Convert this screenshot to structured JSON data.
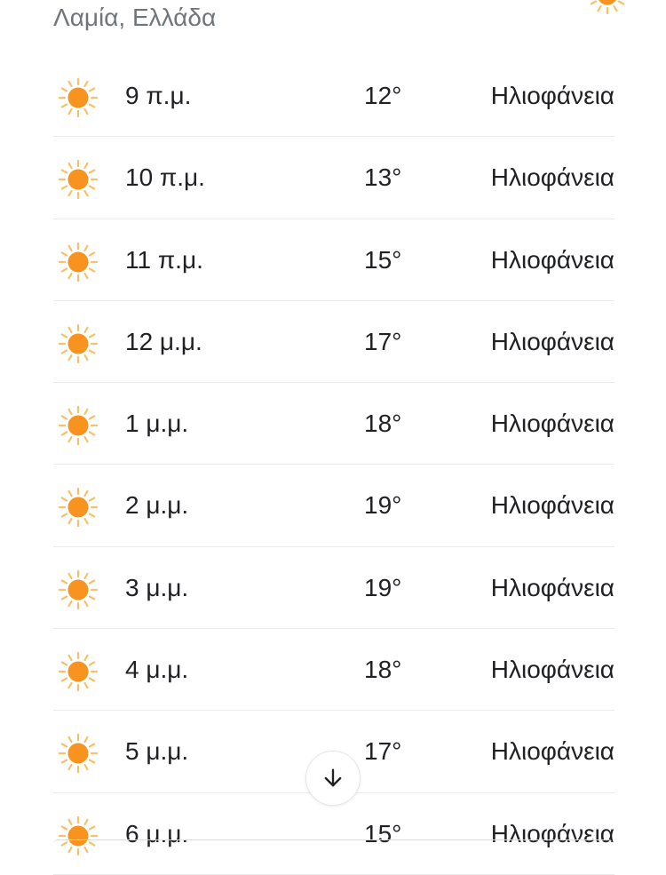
{
  "location": "Λαμία, Ελλάδα",
  "colors": {
    "sun": "#f7931e",
    "rays": "#f5c26b"
  },
  "hourly": [
    {
      "time": "9 π.μ.",
      "temp": "12°",
      "condition": "Ηλιοφάνεια",
      "icon": "sun-icon"
    },
    {
      "time": "10 π.μ.",
      "temp": "13°",
      "condition": "Ηλιοφάνεια",
      "icon": "sun-icon"
    },
    {
      "time": "11 π.μ.",
      "temp": "15°",
      "condition": "Ηλιοφάνεια",
      "icon": "sun-icon"
    },
    {
      "time": "12 μ.μ.",
      "temp": "17°",
      "condition": "Ηλιοφάνεια",
      "icon": "sun-icon"
    },
    {
      "time": "1 μ.μ.",
      "temp": "18°",
      "condition": "Ηλιοφάνεια",
      "icon": "sun-icon"
    },
    {
      "time": "2 μ.μ.",
      "temp": "19°",
      "condition": "Ηλιοφάνεια",
      "icon": "sun-icon"
    },
    {
      "time": "3 μ.μ.",
      "temp": "19°",
      "condition": "Ηλιοφάνεια",
      "icon": "sun-icon"
    },
    {
      "time": "4 μ.μ.",
      "temp": "18°",
      "condition": "Ηλιοφάνεια",
      "icon": "sun-icon"
    },
    {
      "time": "5 μ.μ.",
      "temp": "17°",
      "condition": "Ηλιοφάνεια",
      "icon": "sun-icon"
    },
    {
      "time": "6 μ.μ.",
      "temp": "15°",
      "condition": "Ηλιοφάνεια",
      "icon": "sun-icon"
    }
  ],
  "scroll_button": {
    "icon": "arrow-down-icon"
  }
}
